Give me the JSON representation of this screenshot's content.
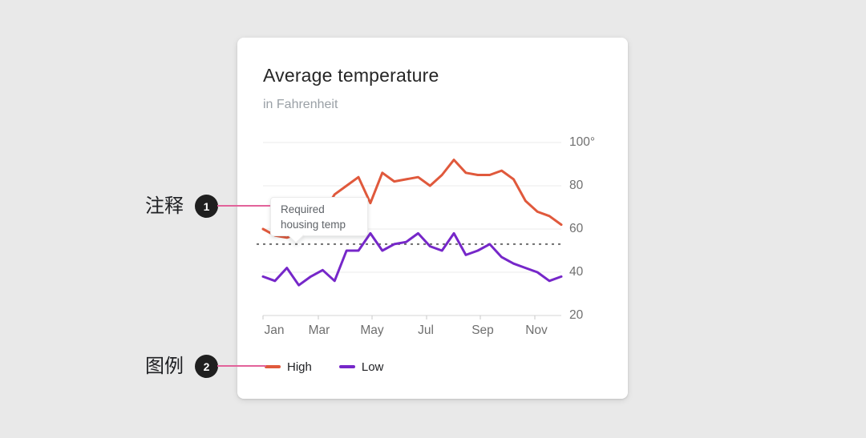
{
  "page": {
    "background": "#e9e9e9"
  },
  "card": {
    "title": "Average temperature",
    "subtitle": "in Fahrenheit"
  },
  "chart_data": {
    "type": "line",
    "title": "Average temperature",
    "subtitle": "in Fahrenheit",
    "x_tick_labels": [
      "Jan",
      "Mar",
      "May",
      "Jul",
      "Sep",
      "Nov"
    ],
    "y_tick_labels": [
      "100°",
      "80",
      "60",
      "40",
      "20"
    ],
    "y_tick_values": [
      100,
      80,
      60,
      40,
      20
    ],
    "ylim": [
      20,
      100
    ],
    "grid": "horizontal",
    "series": [
      {
        "name": "High",
        "color": "#E0593C",
        "values": [
          60,
          57,
          56,
          58,
          62,
          67,
          76,
          80,
          84,
          72,
          86,
          82,
          83,
          84,
          80,
          85,
          92,
          86,
          85,
          85,
          87,
          83,
          73,
          68,
          66,
          62
        ]
      },
      {
        "name": "Low",
        "color": "#7627C9",
        "values": [
          38,
          36,
          42,
          34,
          38,
          41,
          36,
          50,
          50,
          58,
          50,
          53,
          54,
          58,
          52,
          50,
          58,
          48,
          50,
          53,
          47,
          44,
          42,
          40,
          36,
          38
        ]
      }
    ],
    "reference_line": {
      "value": 53,
      "label": "Required housing temp",
      "style": "dashed",
      "color": "#6e6e6e"
    },
    "legend_position": "bottom-left"
  },
  "tooltip": {
    "line1": "Required",
    "line2": "housing temp"
  },
  "legend": {
    "items": [
      {
        "label": "High",
        "color": "#E0593C"
      },
      {
        "label": "Low",
        "color": "#7627C9"
      }
    ]
  },
  "annotations": {
    "connector_color": "#e2629a",
    "badge_color": "#1f1f1f",
    "items": [
      {
        "badge": "1",
        "label": "注释",
        "target": "tooltip"
      },
      {
        "badge": "2",
        "label": "图例",
        "target": "legend"
      }
    ]
  }
}
